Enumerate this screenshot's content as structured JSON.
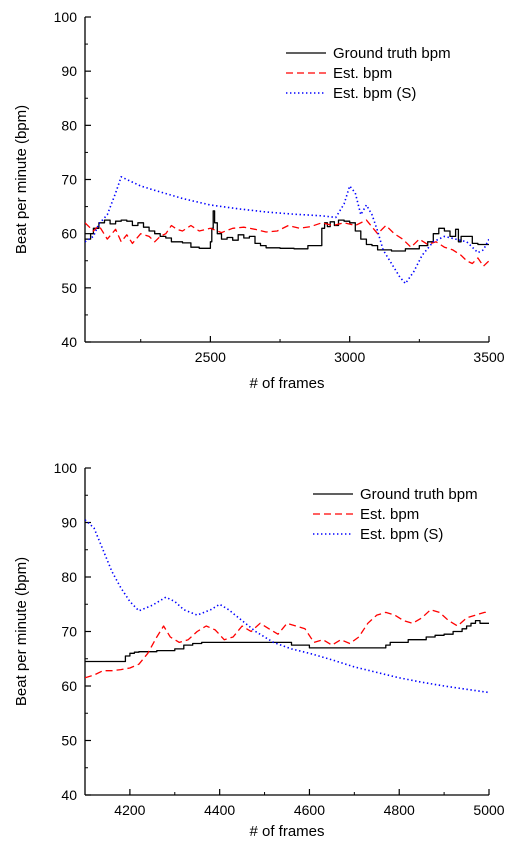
{
  "chart_data": [
    {
      "type": "line",
      "xlabel": "# of frames",
      "ylabel": "Beat per minute (bpm)",
      "xlim": [
        2050,
        3500
      ],
      "ylim": [
        40,
        100
      ],
      "x_ticks": [
        2500,
        3000,
        3500
      ],
      "y_ticks": [
        40,
        50,
        60,
        70,
        80,
        90,
        100
      ],
      "legend_position": "top-right",
      "series": [
        {
          "name": "Ground truth bpm",
          "color": "#000000",
          "dash": "solid",
          "step": true,
          "x": [
            2050,
            2070,
            2080,
            2100,
            2120,
            2140,
            2160,
            2180,
            2200,
            2220,
            2240,
            2260,
            2280,
            2300,
            2320,
            2340,
            2360,
            2400,
            2430,
            2460,
            2500,
            2505,
            2510,
            2515,
            2525,
            2540,
            2560,
            2580,
            2600,
            2620,
            2640,
            2660,
            2680,
            2700,
            2750,
            2800,
            2850,
            2900,
            2910,
            2920,
            2930,
            2945,
            2960,
            2980,
            3000,
            3020,
            3040,
            3060,
            3080,
            3100,
            3150,
            3200,
            3250,
            3280,
            3300,
            3320,
            3340,
            3360,
            3380,
            3390,
            3400,
            3440,
            3460,
            3480,
            3500
          ],
          "y": [
            59,
            60,
            61,
            62,
            62.5,
            61.8,
            62.3,
            62.5,
            62.3,
            61.5,
            62,
            61.2,
            60.5,
            60,
            59.5,
            59.2,
            58.5,
            58.3,
            57.5,
            57.3,
            58.5,
            61,
            64.2,
            62,
            60,
            59,
            59.3,
            58.8,
            59.8,
            59.2,
            59.5,
            58.2,
            57.8,
            57.4,
            57.3,
            57.2,
            57.8,
            61,
            62,
            61.3,
            62.2,
            61.5,
            62.5,
            62.3,
            62,
            60.5,
            59,
            58,
            57.8,
            57,
            56.8,
            57.2,
            57.8,
            58.5,
            60,
            61,
            60.5,
            59.5,
            60.8,
            58.5,
            59.5,
            58.2,
            58,
            58,
            58
          ]
        },
        {
          "name": "Est. bpm",
          "color": "#ff0000",
          "dash": "dashed",
          "x": [
            2050,
            2080,
            2100,
            2130,
            2160,
            2180,
            2200,
            2220,
            2250,
            2280,
            2300,
            2320,
            2340,
            2360,
            2380,
            2400,
            2430,
            2460,
            2500,
            2540,
            2580,
            2620,
            2660,
            2700,
            2740,
            2780,
            2820,
            2860,
            2900,
            2940,
            2980,
            3020,
            3060,
            3100,
            3130,
            3160,
            3190,
            3220,
            3250,
            3280,
            3310,
            3340,
            3370,
            3400,
            3420,
            3440,
            3460,
            3480,
            3500
          ],
          "y": [
            62,
            60.5,
            61.5,
            59,
            60.8,
            58.5,
            59.8,
            58.2,
            60,
            59.5,
            58.5,
            59.5,
            60,
            61.5,
            60.8,
            60.5,
            61.5,
            60.5,
            61,
            60.2,
            61,
            61.2,
            60.8,
            60.3,
            60.5,
            61.5,
            61,
            61.3,
            62,
            61.5,
            62,
            61.5,
            62.5,
            60,
            61.5,
            60,
            59,
            57.5,
            59,
            58,
            58.5,
            57.5,
            57,
            56,
            55,
            54.5,
            55.5,
            54,
            55
          ]
        },
        {
          "name": "Est. bpm (S)",
          "color": "#0000ff",
          "dash": "dotted",
          "x": [
            2050,
            2080,
            2100,
            2130,
            2160,
            2180,
            2200,
            2250,
            2300,
            2400,
            2500,
            2600,
            2700,
            2800,
            2900,
            2950,
            2980,
            3000,
            3020,
            3040,
            3060,
            3080,
            3100,
            3120,
            3150,
            3180,
            3200,
            3230,
            3260,
            3300,
            3340,
            3380,
            3420,
            3440,
            3460,
            3480,
            3500
          ],
          "y": [
            58.5,
            59.5,
            61.8,
            63.5,
            67.5,
            70.5,
            70,
            68.8,
            68,
            66.5,
            65.3,
            64.6,
            64,
            63.6,
            63.3,
            63,
            65.5,
            68.8,
            67.5,
            63.5,
            65.3,
            63.5,
            60.5,
            57,
            54.5,
            52,
            50.8,
            53,
            56,
            58.5,
            59.5,
            59,
            58.5,
            57.5,
            56.5,
            57,
            59
          ]
        }
      ]
    },
    {
      "type": "line",
      "xlabel": "# of frames",
      "ylabel": "Beat per minute (bpm)",
      "xlim": [
        4100,
        5000
      ],
      "ylim": [
        40,
        100
      ],
      "x_ticks": [
        4200,
        4400,
        4600,
        4800,
        5000
      ],
      "y_ticks": [
        40,
        50,
        60,
        70,
        80,
        90,
        100
      ],
      "legend_position": "top-right",
      "series": [
        {
          "name": "Ground truth bpm",
          "color": "#000000",
          "dash": "solid",
          "step": true,
          "x": [
            4100,
            4130,
            4160,
            4190,
            4200,
            4210,
            4220,
            4240,
            4260,
            4300,
            4320,
            4340,
            4360,
            4400,
            4450,
            4500,
            4540,
            4560,
            4580,
            4600,
            4650,
            4700,
            4750,
            4770,
            4780,
            4800,
            4820,
            4840,
            4860,
            4880,
            4900,
            4920,
            4940,
            4950,
            4960,
            4970,
            4980,
            5000
          ],
          "y": [
            64.5,
            64.5,
            64.5,
            65.5,
            66,
            66.2,
            66.3,
            66.3,
            66.5,
            66.8,
            67.5,
            67.8,
            68,
            68,
            68,
            68,
            68,
            67.5,
            67.5,
            67,
            67,
            67,
            67,
            67.5,
            68,
            68,
            68.5,
            68.5,
            69,
            69.3,
            69.5,
            70,
            70.5,
            71,
            71.5,
            72,
            71.5,
            71.5
          ]
        },
        {
          "name": "Est. bpm",
          "color": "#ff0000",
          "dash": "dashed",
          "x": [
            4100,
            4120,
            4140,
            4160,
            4180,
            4200,
            4220,
            4240,
            4260,
            4275,
            4290,
            4310,
            4330,
            4350,
            4370,
            4390,
            4410,
            4430,
            4450,
            4470,
            4490,
            4510,
            4530,
            4550,
            4570,
            4590,
            4610,
            4630,
            4650,
            4670,
            4690,
            4710,
            4730,
            4750,
            4770,
            4790,
            4810,
            4830,
            4850,
            4870,
            4890,
            4910,
            4930,
            4950,
            4970,
            4990,
            5000
          ],
          "y": [
            61.5,
            62,
            62.8,
            62.8,
            63,
            63.3,
            64,
            66,
            69,
            71,
            69,
            68,
            68.5,
            70,
            71,
            70.3,
            68.5,
            69,
            71,
            70,
            71.5,
            70.5,
            69.5,
            71.5,
            71,
            70.5,
            68,
            68.5,
            67.5,
            68.5,
            67.8,
            69,
            71.5,
            73,
            73.5,
            73,
            72,
            71.5,
            72.5,
            74,
            73.5,
            72,
            71,
            72.5,
            73,
            73.5,
            73.5
          ]
        },
        {
          "name": "Est. bpm (S)",
          "color": "#0000ff",
          "dash": "dotted",
          "x": [
            4100,
            4120,
            4140,
            4160,
            4180,
            4200,
            4220,
            4250,
            4280,
            4300,
            4320,
            4350,
            4380,
            4400,
            4420,
            4450,
            4480,
            4520,
            4560,
            4600,
            4650,
            4700,
            4750,
            4800,
            4850,
            4900,
            4950,
            5000
          ],
          "y": [
            90.5,
            89,
            85,
            81,
            78,
            75.5,
            73.8,
            74.8,
            76.3,
            75.5,
            74,
            73,
            74,
            75,
            74,
            72,
            70,
            68,
            66.8,
            66,
            64.8,
            63.5,
            62.5,
            61.5,
            60.7,
            60,
            59.4,
            58.8
          ]
        }
      ]
    }
  ]
}
